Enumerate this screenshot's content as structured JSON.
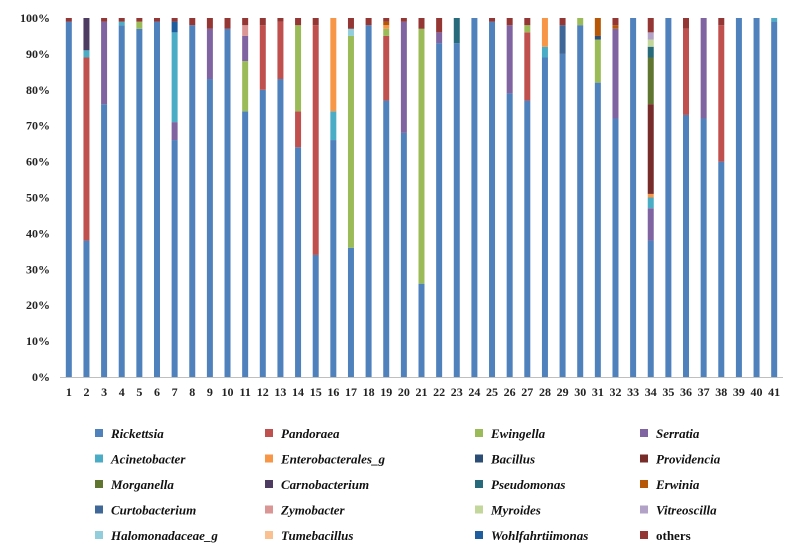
{
  "chart_data": {
    "type": "bar",
    "stacked": true,
    "normalized": true,
    "ylim": [
      0,
      100
    ],
    "yticks": [
      "0%",
      "10%",
      "20%",
      "30%",
      "40%",
      "50%",
      "60%",
      "70%",
      "80%",
      "90%",
      "100%"
    ],
    "categories": [
      "1",
      "2",
      "3",
      "4",
      "5",
      "6",
      "7",
      "8",
      "9",
      "10",
      "11",
      "12",
      "13",
      "14",
      "15",
      "16",
      "17",
      "18",
      "19",
      "20",
      "21",
      "22",
      "23",
      "24",
      "25",
      "26",
      "27",
      "28",
      "29",
      "30",
      "31",
      "32",
      "33",
      "34",
      "35",
      "36",
      "37",
      "38",
      "39",
      "40",
      "41"
    ],
    "legend_position": "bottom",
    "series": [
      {
        "name": "Rickettsia",
        "color": "#4f81bd",
        "values": [
          99,
          38,
          76,
          98,
          97,
          99,
          66,
          98,
          83,
          97,
          74,
          80,
          83,
          64,
          34,
          66,
          36,
          98,
          77,
          68,
          26,
          93,
          93,
          100,
          99,
          79,
          77,
          89,
          90,
          98,
          82,
          72,
          100,
          38,
          100,
          73,
          72,
          60,
          100,
          100,
          99
        ]
      },
      {
        "name": "Pandoraea",
        "color": "#c0504d",
        "values": [
          0,
          51,
          0,
          0,
          0,
          0,
          0,
          0,
          0,
          0,
          0,
          18,
          16,
          10,
          64,
          0,
          0,
          0,
          18,
          0,
          0,
          0,
          0,
          0,
          0,
          0,
          19,
          0,
          0,
          0,
          0,
          0,
          0,
          0,
          0,
          24,
          0,
          38,
          0,
          0,
          0
        ]
      },
      {
        "name": "Ewingella",
        "color": "#9bbb59",
        "values": [
          0,
          0,
          0,
          0,
          2,
          0,
          0,
          0,
          0,
          0,
          14,
          0,
          0,
          24,
          0,
          0,
          59,
          0,
          2,
          0,
          71,
          0,
          0,
          0,
          0,
          0,
          2,
          0,
          0,
          2,
          12,
          0,
          0,
          0,
          0,
          0,
          0,
          0,
          0,
          0,
          0
        ]
      },
      {
        "name": "Serratia",
        "color": "#8064a2",
        "values": [
          0,
          0,
          23,
          0,
          0,
          0,
          5,
          0,
          14,
          0,
          7,
          0,
          0,
          0,
          0,
          0,
          0,
          0,
          0,
          31,
          0,
          3,
          0,
          0,
          0,
          19,
          0,
          0,
          0,
          0,
          0,
          25,
          0,
          9,
          0,
          0,
          28,
          0,
          0,
          0,
          0
        ]
      },
      {
        "name": "Acinetobacter",
        "color": "#4bacc6",
        "values": [
          0,
          2,
          0,
          1,
          0,
          0,
          25,
          0,
          0,
          0,
          0,
          0,
          0,
          0,
          0,
          8,
          0,
          0,
          0,
          0,
          0,
          0,
          0,
          0,
          0,
          0,
          0,
          3,
          0,
          0,
          0,
          0,
          0,
          3,
          0,
          0,
          0,
          0,
          0,
          0,
          1
        ]
      },
      {
        "name": "Enterobacterales_g",
        "color": "#f79646",
        "values": [
          0,
          0,
          0,
          0,
          0,
          0,
          0,
          0,
          0,
          0,
          0,
          0,
          0,
          0,
          0,
          26,
          0,
          0,
          1,
          0,
          0,
          0,
          0,
          0,
          0,
          0,
          0,
          8,
          0,
          0,
          0,
          0,
          0,
          1,
          0,
          0,
          0,
          0,
          0,
          0,
          0
        ]
      },
      {
        "name": "Bacillus",
        "color": "#2c4d75",
        "values": [
          0,
          0,
          0,
          0,
          0,
          0,
          0,
          0,
          0,
          0,
          0,
          0,
          0,
          0,
          0,
          0,
          0,
          0,
          0,
          0,
          0,
          0,
          0,
          0,
          0,
          0,
          0,
          0,
          0,
          0,
          1,
          0,
          0,
          0,
          0,
          0,
          0,
          0,
          0,
          0,
          0
        ]
      },
      {
        "name": "Providencia",
        "color": "#772c2a",
        "values": [
          0,
          0,
          0,
          0,
          0,
          0,
          0,
          0,
          0,
          0,
          0,
          0,
          0,
          0,
          0,
          0,
          0,
          0,
          0,
          0,
          0,
          0,
          0,
          0,
          0,
          0,
          0,
          0,
          0,
          0,
          0,
          0,
          0,
          25,
          0,
          0,
          0,
          0,
          0,
          0,
          0
        ]
      },
      {
        "name": "Morganella",
        "color": "#5f7530",
        "values": [
          0,
          0,
          0,
          0,
          0,
          0,
          0,
          0,
          0,
          0,
          0,
          0,
          0,
          0,
          0,
          0,
          0,
          0,
          0,
          0,
          0,
          0,
          0,
          0,
          0,
          0,
          0,
          0,
          0,
          0,
          0,
          0,
          0,
          13,
          0,
          0,
          0,
          0,
          0,
          0,
          0
        ]
      },
      {
        "name": "Carnobacterium",
        "color": "#4d3b62",
        "values": [
          0,
          9,
          0,
          0,
          0,
          0,
          0,
          0,
          0,
          0,
          0,
          0,
          0,
          0,
          0,
          0,
          0,
          0,
          0,
          0,
          0,
          0,
          0,
          0,
          0,
          0,
          0,
          0,
          0,
          0,
          0,
          0,
          0,
          0,
          0,
          0,
          0,
          0,
          0,
          0,
          0
        ]
      },
      {
        "name": "Pseudomonas",
        "color": "#276a7c",
        "values": [
          0,
          0,
          0,
          0,
          0,
          0,
          0,
          0,
          0,
          0,
          0,
          0,
          0,
          0,
          0,
          0,
          0,
          0,
          0,
          0,
          0,
          0,
          7,
          0,
          0,
          0,
          0,
          0,
          0,
          0,
          0,
          0,
          0,
          3,
          0,
          0,
          0,
          0,
          0,
          0,
          0
        ]
      },
      {
        "name": "Erwinia",
        "color": "#b65708",
        "values": [
          0,
          0,
          0,
          0,
          0,
          0,
          0,
          0,
          0,
          0,
          0,
          0,
          0,
          0,
          0,
          0,
          0,
          0,
          1,
          0,
          0,
          0,
          0,
          0,
          0,
          0,
          0,
          0,
          0,
          0,
          5,
          1,
          0,
          0,
          0,
          0,
          0,
          0,
          0,
          0,
          0
        ]
      },
      {
        "name": "Curtobacterium",
        "color": "#3f6797",
        "values": [
          0,
          0,
          0,
          0,
          0,
          0,
          0,
          0,
          0,
          0,
          0,
          0,
          0,
          0,
          0,
          0,
          0,
          0,
          0,
          0,
          0,
          0,
          0,
          0,
          0,
          0,
          0,
          0,
          8,
          0,
          0,
          0,
          0,
          0,
          0,
          0,
          0,
          0,
          0,
          0,
          0
        ]
      },
      {
        "name": "Zymobacter",
        "color": "#d99694",
        "values": [
          0,
          0,
          0,
          0,
          0,
          0,
          0,
          0,
          0,
          0,
          3,
          0,
          0,
          0,
          0,
          0,
          0,
          0,
          0,
          0,
          0,
          0,
          0,
          0,
          0,
          0,
          0,
          0,
          0,
          0,
          0,
          0,
          0,
          0,
          0,
          0,
          0,
          0,
          0,
          0,
          0
        ]
      },
      {
        "name": "Myroides",
        "color": "#c3d69b",
        "values": [
          0,
          0,
          0,
          0,
          0,
          0,
          0,
          0,
          0,
          0,
          0,
          0,
          0,
          0,
          0,
          0,
          0,
          0,
          0,
          0,
          0,
          0,
          0,
          0,
          0,
          0,
          0,
          0,
          0,
          0,
          0,
          0,
          0,
          2,
          0,
          0,
          0,
          0,
          0,
          0,
          0
        ]
      },
      {
        "name": "Vitreoscilla",
        "color": "#b2a2c7",
        "values": [
          0,
          0,
          0,
          0,
          0,
          0,
          0,
          0,
          0,
          0,
          0,
          0,
          0,
          0,
          0,
          0,
          0,
          0,
          0,
          0,
          0,
          0,
          0,
          0,
          0,
          0,
          0,
          0,
          0,
          0,
          0,
          0,
          0,
          2,
          0,
          0,
          0,
          0,
          0,
          0,
          0
        ]
      },
      {
        "name": "Halomonadaceae_g",
        "color": "#92cddc",
        "values": [
          0,
          0,
          0,
          0,
          0,
          0,
          0,
          0,
          0,
          0,
          0,
          0,
          0,
          0,
          0,
          0,
          2,
          0,
          0,
          0,
          0,
          0,
          0,
          0,
          0,
          0,
          0,
          0,
          0,
          0,
          0,
          0,
          0,
          0,
          0,
          0,
          0,
          0,
          0,
          0,
          0
        ]
      },
      {
        "name": "Tumebacillus",
        "color": "#fac08f",
        "values": [
          0,
          0,
          0,
          0,
          0,
          0,
          0,
          0,
          0,
          0,
          0,
          0,
          0,
          0,
          0,
          0,
          0,
          0,
          0,
          0,
          0,
          0,
          0,
          0,
          0,
          0,
          0,
          0,
          0,
          0,
          0,
          0,
          0,
          0,
          0,
          0,
          0,
          0,
          0,
          0,
          0
        ]
      },
      {
        "name": "Wohlfahrtiimonas",
        "color": "#1f5e9e",
        "values": [
          0,
          0,
          0,
          0,
          0,
          0,
          3,
          0,
          0,
          0,
          0,
          0,
          0,
          0,
          0,
          0,
          0,
          0,
          0,
          0,
          0,
          0,
          0,
          0,
          0,
          0,
          0,
          0,
          0,
          0,
          0,
          0,
          0,
          0,
          0,
          0,
          0,
          0,
          0,
          0,
          0
        ]
      },
      {
        "name": "others",
        "color": "#943634",
        "values": [
          1,
          0,
          1,
          1,
          1,
          1,
          1,
          2,
          3,
          3,
          2,
          2,
          1,
          2,
          2,
          0,
          3,
          2,
          1,
          1,
          3,
          4,
          0,
          0,
          1,
          2,
          2,
          0,
          2,
          0,
          0,
          2,
          0,
          4,
          0,
          3,
          0,
          2,
          0,
          0,
          0
        ]
      }
    ]
  }
}
